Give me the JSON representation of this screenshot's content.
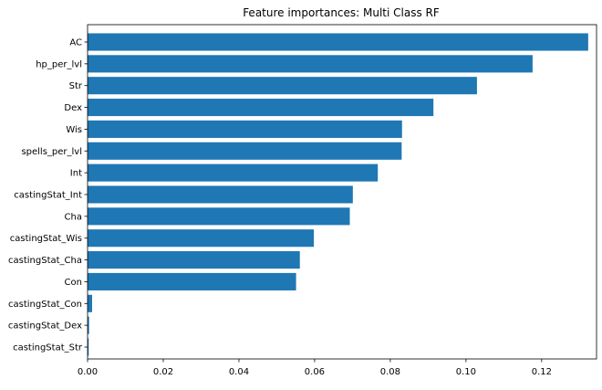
{
  "chart_data": {
    "type": "bar",
    "orientation": "horizontal",
    "title": "Feature importances: Multi Class RF",
    "xlabel": "",
    "ylabel": "",
    "xlim": [
      0,
      0.1345
    ],
    "xticks": [
      "0.00",
      "0.02",
      "0.04",
      "0.06",
      "0.08",
      "0.10",
      "0.12"
    ],
    "grid": false,
    "bar_color": "#1f77b4",
    "categories": [
      "AC",
      "hp_per_lvl",
      "Str",
      "Dex",
      "Wis",
      "spells_per_lvl",
      "Int",
      "castingStat_Int",
      "Cha",
      "castingStat_Wis",
      "castingStat_Cha",
      "Con",
      "castingStat_Con",
      "castingStat_Dex",
      "castingStat_Str"
    ],
    "values": [
      0.1323,
      0.1176,
      0.1029,
      0.0914,
      0.0831,
      0.083,
      0.0767,
      0.0701,
      0.0693,
      0.0598,
      0.0561,
      0.0551,
      0.0012,
      0.0004,
      0.0003
    ]
  }
}
